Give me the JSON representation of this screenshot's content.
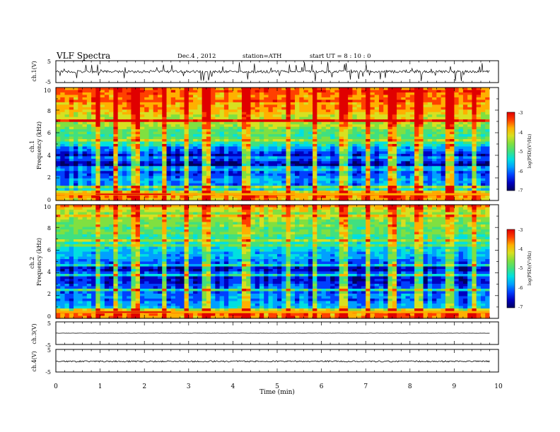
{
  "header": {
    "title": "VLF  Spectra",
    "date": "Dec.4  , 2012",
    "station": "station=ATH",
    "start": "start  UT  =   8 : 10 : 0"
  },
  "colors": {
    "palette": [
      "#000060",
      "#0000c0",
      "#0040ff",
      "#00a0ff",
      "#00e0e0",
      "#40e080",
      "#80e040",
      "#d8e020",
      "#ffb000",
      "#ff4000",
      "#e00000"
    ]
  },
  "chart_data": [
    {
      "id": "ch1-waveform",
      "type": "line",
      "ylabel": "ch.1(V)",
      "ylim": [
        -5,
        5
      ],
      "yticks": [
        "5",
        "-5"
      ],
      "xlim": [
        0,
        10
      ],
      "series": [
        {
          "baseline": 0,
          "noise_amplitude": 0.6,
          "spike_max": 4.8,
          "duration_min": 9.8
        }
      ]
    },
    {
      "id": "ch1-spectrogram",
      "type": "heatmap",
      "ylabel": "ch.1\nFrequency  (kHz)",
      "ylim": [
        0,
        10
      ],
      "yticks": [
        "0",
        "2",
        "4",
        "6",
        "8",
        "10"
      ],
      "xlim": [
        0,
        10
      ],
      "colorbar": {
        "label": "log(PSD)(V²/Hz)",
        "range": [
          -7,
          -3
        ],
        "ticks": [
          "-3",
          "-4",
          "-5",
          "-6",
          "-7"
        ]
      },
      "profile_logpsd": [
        [
          0,
          -4.0
        ],
        [
          0.6,
          -3.4
        ],
        [
          1.0,
          -5.6
        ],
        [
          2.0,
          -5.8
        ],
        [
          2.5,
          -6.2
        ],
        [
          3.0,
          -6.5
        ],
        [
          4.0,
          -6.3
        ],
        [
          5.0,
          -5.3
        ],
        [
          6.0,
          -4.9
        ],
        [
          7.0,
          -4.4
        ],
        [
          8.0,
          -4.0
        ],
        [
          9.0,
          -3.7
        ],
        [
          10.0,
          -3.6
        ]
      ],
      "bright_events_min": [
        0.95,
        1.35,
        1.8,
        2.45,
        2.95,
        3.4,
        4.3,
        5.25,
        5.85,
        6.5,
        7.05,
        7.6,
        8.2,
        8.9,
        9.45
      ]
    },
    {
      "id": "ch2-spectrogram",
      "type": "heatmap",
      "ylabel": "ch.2\nFrequency  (kHz)",
      "ylim": [
        0,
        10
      ],
      "yticks": [
        "0",
        "2",
        "4",
        "6",
        "8",
        "10"
      ],
      "xlim": [
        0,
        10
      ],
      "colorbar": {
        "label": "log(PSD)(V²/Hz)",
        "range": [
          -7,
          -3
        ],
        "ticks": [
          "-3",
          "-4",
          "-5",
          "-6",
          "-7"
        ]
      },
      "profile_logpsd": [
        [
          0,
          -4.0
        ],
        [
          0.6,
          -3.4
        ],
        [
          1.0,
          -5.8
        ],
        [
          2.0,
          -6.0
        ],
        [
          3.0,
          -6.2
        ],
        [
          4.0,
          -6.6
        ],
        [
          5.0,
          -6.0
        ],
        [
          6.0,
          -5.4
        ],
        [
          7.0,
          -5.0
        ],
        [
          8.0,
          -4.8
        ],
        [
          9.0,
          -4.6
        ],
        [
          10.0,
          -4.6
        ]
      ],
      "bright_events_min": [
        0.95,
        1.35,
        1.8,
        2.45,
        2.95,
        3.4,
        4.3,
        5.25,
        5.85,
        6.5,
        7.05,
        7.6,
        8.2,
        8.9,
        9.45
      ]
    },
    {
      "id": "ch3-waveform",
      "type": "line",
      "ylabel": "ch.3(V)",
      "ylim": [
        -5,
        5
      ],
      "yticks": [
        "5",
        "-5"
      ],
      "xlim": [
        0,
        10
      ],
      "series": [
        {
          "baseline": 0,
          "noise_amplitude": 0.05,
          "duration_min": 9.8
        }
      ]
    },
    {
      "id": "ch4-waveform",
      "type": "line",
      "ylabel": "ch.4(V)",
      "ylim": [
        -5,
        5
      ],
      "yticks": [
        "5",
        "-5"
      ],
      "xlim": [
        0,
        10
      ],
      "series": [
        {
          "baseline": -0.3,
          "noise_amplitude": 0.35,
          "duration_min": 9.8
        }
      ]
    }
  ],
  "xaxis": {
    "label": "Time  (min)",
    "ticks": [
      "0",
      "1",
      "2",
      "3",
      "4",
      "5",
      "6",
      "7",
      "8",
      "9",
      "10"
    ]
  }
}
